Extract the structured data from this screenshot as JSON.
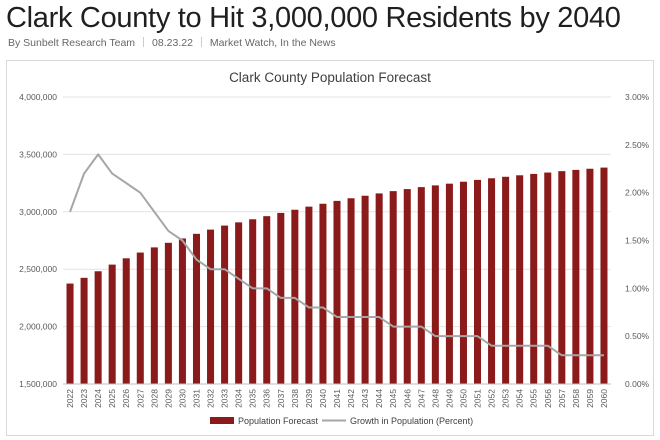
{
  "article": {
    "headline": "Clark County to Hit 3,000,000 Residents by 2040",
    "author": "By Sunbelt Research Team",
    "date": "08.23.22",
    "categories": [
      "Market Watch",
      "In the News"
    ]
  },
  "chart_data": {
    "type": "bar",
    "title": "Clark County Population Forecast",
    "categories": [
      "2022",
      "2023",
      "2024",
      "2025",
      "2026",
      "2027",
      "2028",
      "2029",
      "2030",
      "2031",
      "2032",
      "2033",
      "2034",
      "2035",
      "2036",
      "2037",
      "2038",
      "2039",
      "2040",
      "2041",
      "2042",
      "2043",
      "2044",
      "2045",
      "2046",
      "2047",
      "2048",
      "2049",
      "2050",
      "2051",
      "2052",
      "2053",
      "2054",
      "2055",
      "2056",
      "2057",
      "2058",
      "2059",
      "2060"
    ],
    "series": [
      {
        "name": "Population Forecast",
        "type": "bar",
        "axis": "left",
        "color": "#8b1a1a",
        "values": [
          2375000,
          2425000,
          2482000,
          2540000,
          2595000,
          2645000,
          2690000,
          2730000,
          2768000,
          2808000,
          2845000,
          2880000,
          2908000,
          2935000,
          2962000,
          2990000,
          3018000,
          3045000,
          3070000,
          3095000,
          3118000,
          3140000,
          3160000,
          3180000,
          3198000,
          3215000,
          3230000,
          3245000,
          3262000,
          3278000,
          3292000,
          3305000,
          3318000,
          3330000,
          3342000,
          3354000,
          3365000,
          3375000,
          3385000
        ]
      },
      {
        "name": "Growth in Population (Percent)",
        "type": "line",
        "axis": "right",
        "color": "#a6a6a6",
        "values": [
          1.8,
          2.2,
          2.4,
          2.2,
          2.1,
          2.0,
          1.8,
          1.6,
          1.5,
          1.3,
          1.2,
          1.2,
          1.1,
          1.0,
          1.0,
          0.9,
          0.9,
          0.8,
          0.8,
          0.7,
          0.7,
          0.7,
          0.7,
          0.6,
          0.6,
          0.6,
          0.5,
          0.5,
          0.5,
          0.5,
          0.4,
          0.4,
          0.4,
          0.4,
          0.4,
          0.3,
          0.3,
          0.3,
          0.3
        ]
      }
    ],
    "y_left": {
      "min": 1500000,
      "max": 4000000,
      "ticks": [
        "1,500,000",
        "2,000,000",
        "2,500,000",
        "3,000,000",
        "3,500,000",
        "4,000,000"
      ]
    },
    "y_right": {
      "min": 0,
      "max": 3,
      "ticks": [
        "0.00%",
        "0.50%",
        "1.00%",
        "1.50%",
        "2.00%",
        "2.50%",
        "3.00%"
      ]
    },
    "grid": true,
    "legend_position": "bottom"
  }
}
